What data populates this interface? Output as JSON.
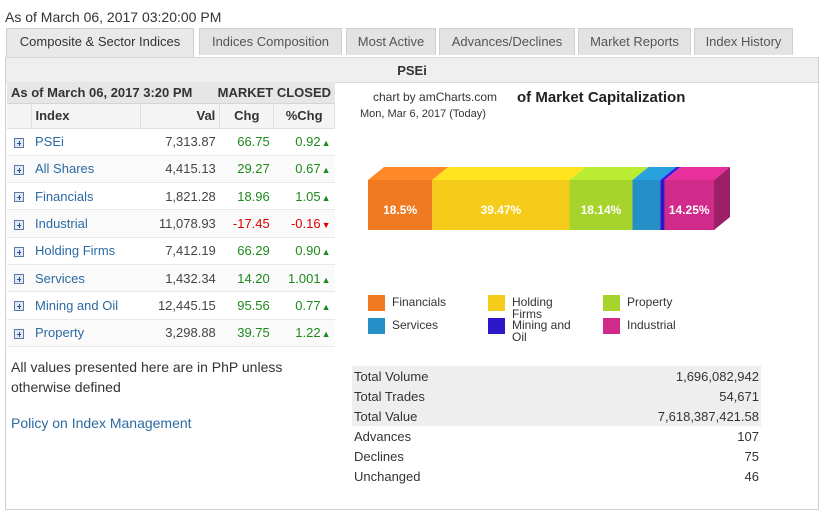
{
  "timestamp": "As of March 06, 2017 03:20:00 PM",
  "tabs": [
    {
      "label": "Composite & Sector Indices"
    },
    {
      "label": "Indices Composition"
    },
    {
      "label": "Most Active"
    },
    {
      "label": "Advances/Declines"
    },
    {
      "label": "Market Reports"
    },
    {
      "label": "Index History"
    }
  ],
  "panel_title": "PSEi",
  "table": {
    "asof": "As of March 06, 2017 3:20 PM",
    "market_status": "MARKET CLOSED",
    "headers": {
      "index": "Index",
      "val": "Val",
      "chg": "Chg",
      "pct": "%Chg"
    },
    "rows": [
      {
        "name": "PSEi",
        "val": "7,313.87",
        "chg": "66.75",
        "pct": "0.92",
        "dir": "up"
      },
      {
        "name": "All Shares",
        "val": "4,415.13",
        "chg": "29.27",
        "pct": "0.67",
        "dir": "up"
      },
      {
        "name": "Financials",
        "val": "1,821.28",
        "chg": "18.96",
        "pct": "1.05",
        "dir": "up"
      },
      {
        "name": "Industrial",
        "val": "11,078.93",
        "chg": "-17.45",
        "pct": "-0.16",
        "dir": "down"
      },
      {
        "name": "Holding Firms",
        "val": "7,412.19",
        "chg": "66.29",
        "pct": "0.90",
        "dir": "up"
      },
      {
        "name": "Services",
        "val": "1,432.34",
        "chg": "14.20",
        "pct": "1.001",
        "dir": "up"
      },
      {
        "name": "Mining and Oil",
        "val": "12,445.15",
        "chg": "95.56",
        "pct": "0.77",
        "dir": "up"
      },
      {
        "name": "Property",
        "val": "3,298.88",
        "chg": "39.75",
        "pct": "1.22",
        "dir": "up"
      }
    ],
    "arrow_up": "▲",
    "arrow_down": "▼"
  },
  "note": "All values presented here are in PhP unless otherwise defined",
  "policy_link": "Policy on Index Management",
  "chart": {
    "credit": "chart by amCharts.com",
    "title": "of Market Capitalization",
    "date": "Mon, Mar 6, 2017 (Today)"
  },
  "chart_data": {
    "type": "bar",
    "title": "of Market Capitalization",
    "stacked_100": true,
    "segments": [
      {
        "name": "Financials",
        "value": 18.5,
        "label": "18.5%",
        "color": "#f07a22"
      },
      {
        "name": "Holding Firms",
        "value": 39.47,
        "label": "39.47%",
        "color": "#f5cc1a"
      },
      {
        "name": "Property",
        "value": 18.14,
        "label": "18.14%",
        "color": "#a6d42c"
      },
      {
        "name": "Services",
        "value": 8.0,
        "label": "",
        "color": "#2590c7"
      },
      {
        "name": "Mining and Oil",
        "value": 1.2,
        "label": "",
        "color": "#2c18c8"
      },
      {
        "name": "Industrial",
        "value": 14.25,
        "label": "14.25%",
        "color": "#d02a8a"
      }
    ]
  },
  "legend": [
    {
      "label": "Financials",
      "color": "#f07a22"
    },
    {
      "label": "Holding Firms",
      "color": "#f5cc1a"
    },
    {
      "label": "Property",
      "color": "#a6d42c"
    },
    {
      "label": "Services",
      "color": "#2590c7"
    },
    {
      "label": "Mining and Oil",
      "color": "#2c18c8"
    },
    {
      "label": "Industrial",
      "color": "#d02a8a"
    }
  ],
  "stats": [
    {
      "label": "Total Volume",
      "value": "1,696,082,942"
    },
    {
      "label": "Total Trades",
      "value": "54,671"
    },
    {
      "label": "Total Value",
      "value": "7,618,387,421.58"
    },
    {
      "label": "Advances",
      "value": "107"
    },
    {
      "label": "Declines",
      "value": "75"
    },
    {
      "label": "Unchanged",
      "value": "46"
    }
  ]
}
